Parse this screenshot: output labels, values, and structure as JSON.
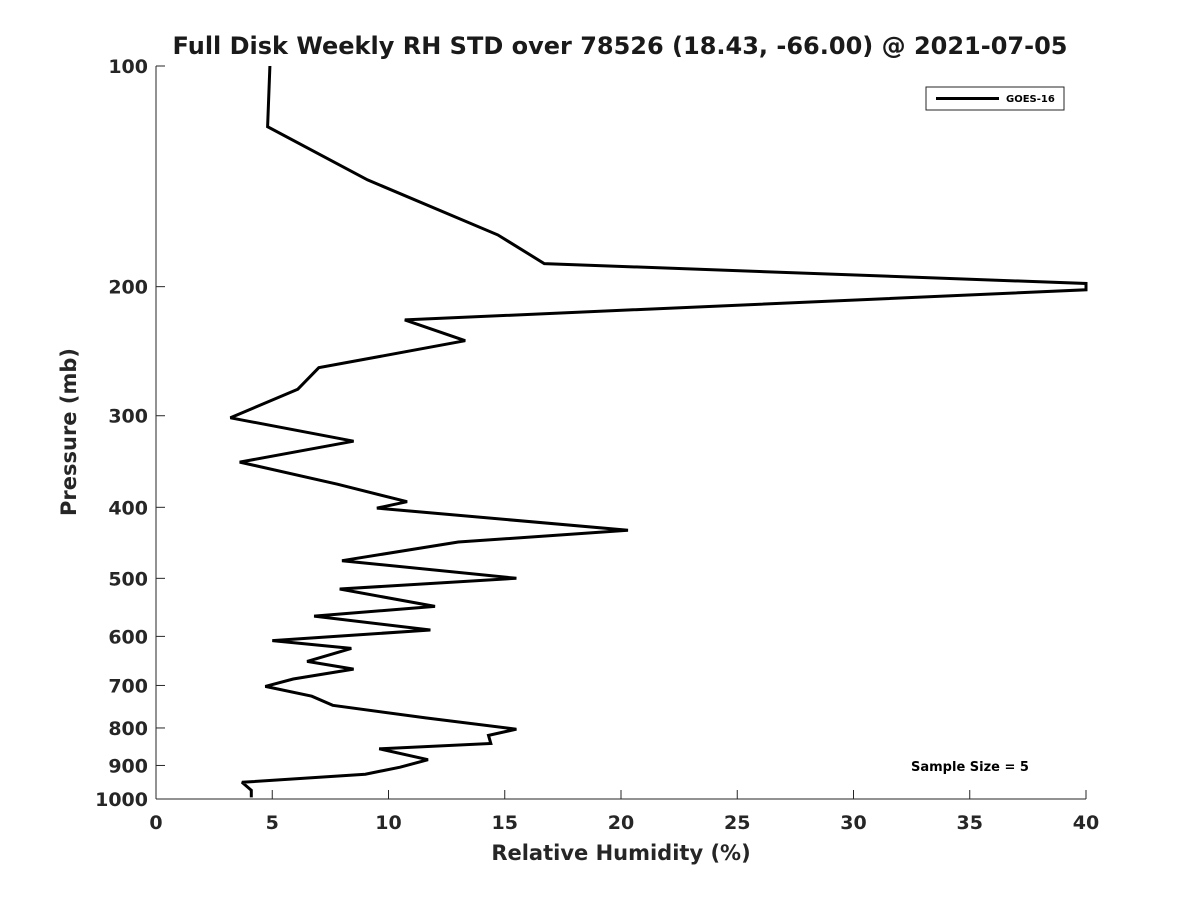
{
  "chart_data": {
    "type": "line",
    "title": "Full Disk Weekly RH STD over 78526 (18.43, -66.00) @ 2021-07-05",
    "xlabel": "Relative Humidity (%)",
    "ylabel": "Pressure (mb)",
    "xlim": [
      0,
      40
    ],
    "ylim": [
      100,
      1000
    ],
    "yscale": "log",
    "y_reversed": true,
    "grid": false,
    "x_ticks": [
      0,
      5,
      10,
      15,
      20,
      25,
      30,
      35,
      40
    ],
    "y_ticks": [
      100,
      200,
      300,
      400,
      500,
      600,
      700,
      800,
      900,
      1000
    ],
    "legend_position": "top-right",
    "series": [
      {
        "name": "GOES-16",
        "color": "#000000",
        "x": [
          4.9,
          4.8,
          9.1,
          14.7,
          16.7,
          40.0,
          40.0,
          10.7,
          13.3,
          7.0,
          6.1,
          3.2,
          8.5,
          3.6,
          7.8,
          10.8,
          9.5,
          20.3,
          13.0,
          8.0,
          15.5,
          7.9,
          12.0,
          6.8,
          11.8,
          5.0,
          8.4,
          6.5,
          8.5,
          5.9,
          4.7,
          6.7,
          7.6,
          11.6,
          15.5,
          14.3,
          14.4,
          9.6,
          11.7,
          10.5,
          9.0,
          3.7,
          4.1,
          4.1
        ],
        "y": [
          100,
          121,
          143,
          170,
          186,
          198,
          202,
          222,
          237,
          258,
          276,
          302,
          325,
          347,
          372,
          393,
          401,
          430,
          446,
          473,
          500,
          517,
          546,
          563,
          588,
          608,
          623,
          649,
          665,
          686,
          702,
          724,
          745,
          775,
          803,
          819,
          840,
          854,
          884,
          905,
          925,
          949,
          973,
          995
        ]
      }
    ],
    "annotations": [
      "Sample Size = 5"
    ]
  }
}
